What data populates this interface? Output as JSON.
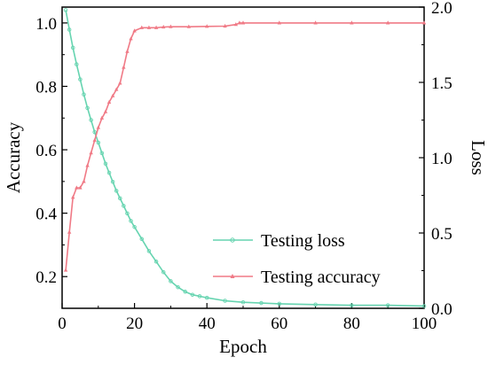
{
  "chart_data": {
    "type": "line",
    "xlabel": "Epoch",
    "ylabel_left": "Accuracy",
    "ylabel_right": "Loss",
    "xlim": [
      0,
      100
    ],
    "ylim_left": [
      0.1,
      1.05
    ],
    "ylim_right": [
      0,
      2.0
    ],
    "xticks": [
      0,
      20,
      40,
      60,
      80,
      100
    ],
    "yticks_left": [
      0.2,
      0.4,
      0.6,
      0.8,
      1.0
    ],
    "yticks_right": [
      0.0,
      0.5,
      1.0,
      1.5,
      2.0
    ],
    "legend_position": "bottom-right",
    "grid": false,
    "series": [
      {
        "name": "Testing loss",
        "axis": "right",
        "color": "#66d4b0",
        "marker": "circle",
        "x": [
          1,
          2,
          3,
          4,
          5,
          6,
          7,
          8,
          9,
          10,
          11,
          12,
          13,
          14,
          15,
          16,
          17,
          18,
          19,
          20,
          22,
          24,
          26,
          28,
          30,
          32,
          34,
          36,
          38,
          40,
          45,
          50,
          55,
          60,
          70,
          80,
          90,
          100
        ],
        "values": [
          1.98,
          1.85,
          1.73,
          1.62,
          1.52,
          1.42,
          1.33,
          1.25,
          1.17,
          1.1,
          1.03,
          0.96,
          0.9,
          0.84,
          0.78,
          0.73,
          0.68,
          0.63,
          0.58,
          0.54,
          0.46,
          0.38,
          0.31,
          0.24,
          0.18,
          0.14,
          0.11,
          0.09,
          0.08,
          0.07,
          0.05,
          0.04,
          0.035,
          0.03,
          0.025,
          0.02,
          0.02,
          0.015
        ]
      },
      {
        "name": "Testing accuracy",
        "axis": "left",
        "color": "#f07a86",
        "marker": "triangle",
        "x": [
          1,
          2,
          3,
          4,
          5,
          6,
          7,
          8,
          9,
          10,
          11,
          12,
          13,
          14,
          15,
          16,
          17,
          18,
          19,
          20,
          22,
          24,
          26,
          28,
          30,
          35,
          40,
          45,
          48,
          49,
          50,
          60,
          70,
          80,
          90,
          100
        ],
        "values": [
          0.22,
          0.34,
          0.45,
          0.48,
          0.48,
          0.5,
          0.55,
          0.59,
          0.63,
          0.67,
          0.7,
          0.72,
          0.75,
          0.77,
          0.79,
          0.81,
          0.86,
          0.91,
          0.95,
          0.975,
          0.985,
          0.985,
          0.985,
          0.987,
          0.988,
          0.988,
          0.989,
          0.99,
          0.995,
          1.0,
          1.0,
          1.0,
          1.0,
          1.0,
          1.0,
          1.0
        ]
      }
    ]
  }
}
